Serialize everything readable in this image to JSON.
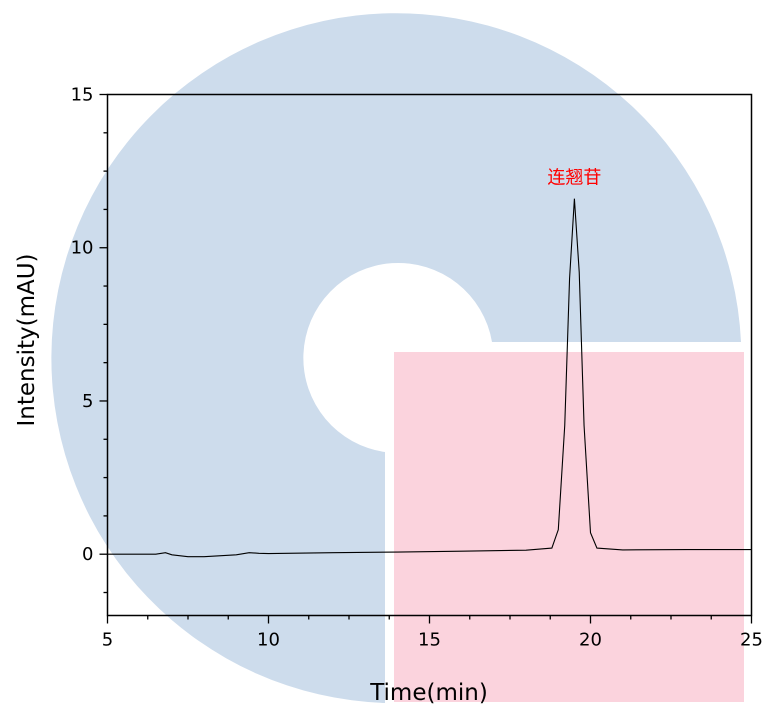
{
  "chart_data": {
    "type": "line",
    "title": "",
    "xlabel": "Time(min)",
    "ylabel": "Intensity(mAU)",
    "xlim": [
      5,
      25
    ],
    "ylim": [
      -2,
      15
    ],
    "x_ticks": [
      "5",
      "10",
      "15",
      "20",
      "25"
    ],
    "y_ticks": [
      "0",
      "5",
      "10",
      "15"
    ],
    "grid": false,
    "legend": "none",
    "series": [
      {
        "color": "#000000",
        "x": [
          5.0,
          6.0,
          6.5,
          6.8,
          7.0,
          7.5,
          8.0,
          9.0,
          9.4,
          9.7,
          10.0,
          12.0,
          14.0,
          16.0,
          18.0,
          18.8,
          19.0,
          19.2,
          19.35,
          19.5,
          19.65,
          19.8,
          20.0,
          20.2,
          21.0,
          23.0,
          25.0
        ],
        "y": [
          0.0,
          0.0,
          0.0,
          0.05,
          -0.02,
          -0.08,
          -0.08,
          -0.02,
          0.05,
          0.03,
          0.02,
          0.05,
          0.07,
          0.1,
          0.13,
          0.2,
          0.8,
          4.2,
          9.0,
          11.6,
          9.2,
          4.2,
          0.7,
          0.2,
          0.14,
          0.15,
          0.15
        ]
      }
    ],
    "annotations": [
      {
        "text": "连翘苷",
        "x": 19.5,
        "y": 12.1,
        "color": "#ff0000"
      }
    ]
  },
  "watermark": {
    "shape_color": "#cddcec",
    "rect_color": "#fbd3dd"
  }
}
